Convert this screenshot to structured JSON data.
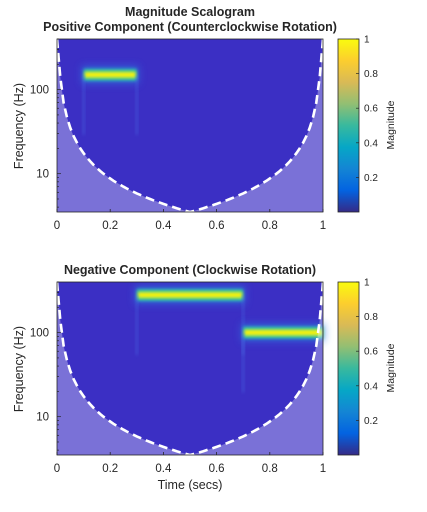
{
  "figure": {
    "title": "Magnitude Scalogram"
  },
  "chart_data": [
    {
      "type": "heatmap",
      "title": "Positive Component (Counterclockwise Rotation)",
      "xlabel": "",
      "ylabel": "Frequency (Hz)",
      "xlim": [
        0,
        1
      ],
      "ylim": [
        3.5,
        400
      ],
      "yscale": "log",
      "x_ticks": [
        "0",
        "0.2",
        "0.4",
        "0.6",
        "0.8",
        "1"
      ],
      "y_ticks": [
        "10",
        "100"
      ],
      "colorbar": {
        "label": "Magnitude",
        "range": [
          0,
          1
        ],
        "ticks": [
          "0.2",
          "0.4",
          "0.6",
          "0.8",
          "1"
        ]
      },
      "tones": [
        {
          "t_start": 0.1,
          "t_end": 0.3,
          "frequency_hz": 150,
          "magnitude": 1.0
        }
      ],
      "cone_of_influence": "dashed white, shaded outside",
      "grid": false
    },
    {
      "type": "heatmap",
      "title": "Negative Component (Clockwise Rotation)",
      "xlabel": "Time (secs)",
      "ylabel": "Frequency (Hz)",
      "xlim": [
        0,
        1
      ],
      "ylim": [
        3.5,
        400
      ],
      "yscale": "log",
      "x_ticks": [
        "0",
        "0.2",
        "0.4",
        "0.6",
        "0.8",
        "1"
      ],
      "y_ticks": [
        "10",
        "100"
      ],
      "colorbar": {
        "label": "Magnitude",
        "range": [
          0,
          1
        ],
        "ticks": [
          "0.2",
          "0.4",
          "0.6",
          "0.8",
          "1"
        ]
      },
      "tones": [
        {
          "t_start": 0.3,
          "t_end": 0.7,
          "frequency_hz": 280,
          "magnitude": 1.0
        },
        {
          "t_start": 0.7,
          "t_end": 1.0,
          "frequency_hz": 100,
          "magnitude": 1.0
        }
      ],
      "cone_of_influence": "dashed white, shaded outside",
      "grid": false
    }
  ]
}
